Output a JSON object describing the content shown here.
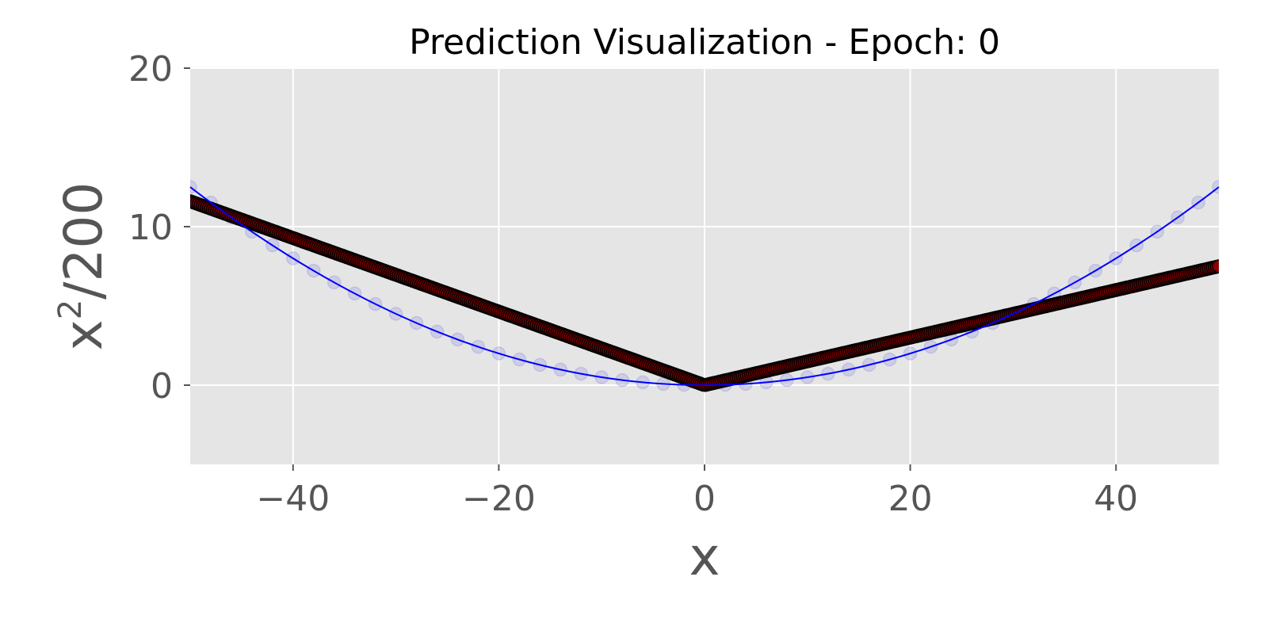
{
  "chart_data": {
    "type": "scatter",
    "title": "Prediction Visualization  - Epoch: 0",
    "xlabel": "x",
    "ylabel_base": "x",
    "ylabel_exp": "2",
    "ylabel_rest": "/200",
    "xlim": [
      -50,
      50
    ],
    "ylim": [
      -5,
      20
    ],
    "xticks": [
      -40,
      -20,
      0,
      20,
      40
    ],
    "xtick_labels": [
      "−40",
      "−20",
      "0",
      "20",
      "40"
    ],
    "yticks": [
      0,
      10,
      20
    ],
    "ytick_labels": [
      "0",
      "10",
      "20"
    ],
    "grid": true,
    "background": "#e5e5e5",
    "series": [
      {
        "kind": "curve",
        "formula": "y = x^2 / 200",
        "x_range": [
          -50,
          50
        ],
        "color": "#0000ff"
      },
      {
        "kind": "training-points",
        "formula": "y = x^2 / 200",
        "x_range": [
          -50,
          50
        ],
        "count": 51,
        "color": "#a0a0e0"
      },
      {
        "kind": "predictions",
        "x_range": [
          -50,
          50
        ],
        "count": 500,
        "fill": "#8b0000",
        "edge": "#000000",
        "piecewise": {
          "left": {
            "x": [
              -50,
              0
            ],
            "y": [
              11.6,
              0.0
            ]
          },
          "right": {
            "x": [
              0,
              50
            ],
            "y": [
              0.0,
              7.5
            ]
          }
        }
      }
    ]
  }
}
